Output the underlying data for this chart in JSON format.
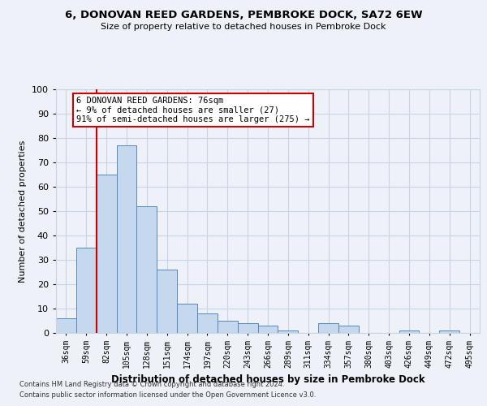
{
  "title": "6, DONOVAN REED GARDENS, PEMBROKE DOCK, SA72 6EW",
  "subtitle": "Size of property relative to detached houses in Pembroke Dock",
  "xlabel": "Distribution of detached houses by size in Pembroke Dock",
  "ylabel": "Number of detached properties",
  "bar_labels": [
    "36sqm",
    "59sqm",
    "82sqm",
    "105sqm",
    "128sqm",
    "151sqm",
    "174sqm",
    "197sqm",
    "220sqm",
    "243sqm",
    "266sqm",
    "289sqm",
    "311sqm",
    "334sqm",
    "357sqm",
    "380sqm",
    "403sqm",
    "426sqm",
    "449sqm",
    "472sqm",
    "495sqm"
  ],
  "bar_values": [
    6,
    35,
    65,
    77,
    52,
    26,
    12,
    8,
    5,
    4,
    3,
    1,
    0,
    4,
    3,
    0,
    0,
    1,
    0,
    1,
    0
  ],
  "bar_color": "#c5d8ed",
  "bar_edge_color": "#5588bb",
  "vline_x_idx": 2,
  "vline_color": "#cc0000",
  "ylim": [
    0,
    100
  ],
  "yticks": [
    0,
    10,
    20,
    30,
    40,
    50,
    60,
    70,
    80,
    90,
    100
  ],
  "annotation_title": "6 DONOVAN REED GARDENS: 76sqm",
  "annotation_line1": "← 9% of detached houses are smaller (27)",
  "annotation_line2": "91% of semi-detached houses are larger (275) →",
  "annotation_box_color": "#ffffff",
  "annotation_border_color": "#cc0000",
  "footer1": "Contains HM Land Registry data © Crown copyright and database right 2024.",
  "footer2": "Contains public sector information licensed under the Open Government Licence v3.0.",
  "bg_color": "#eef2f8",
  "grid_color": "#c8d4e4"
}
